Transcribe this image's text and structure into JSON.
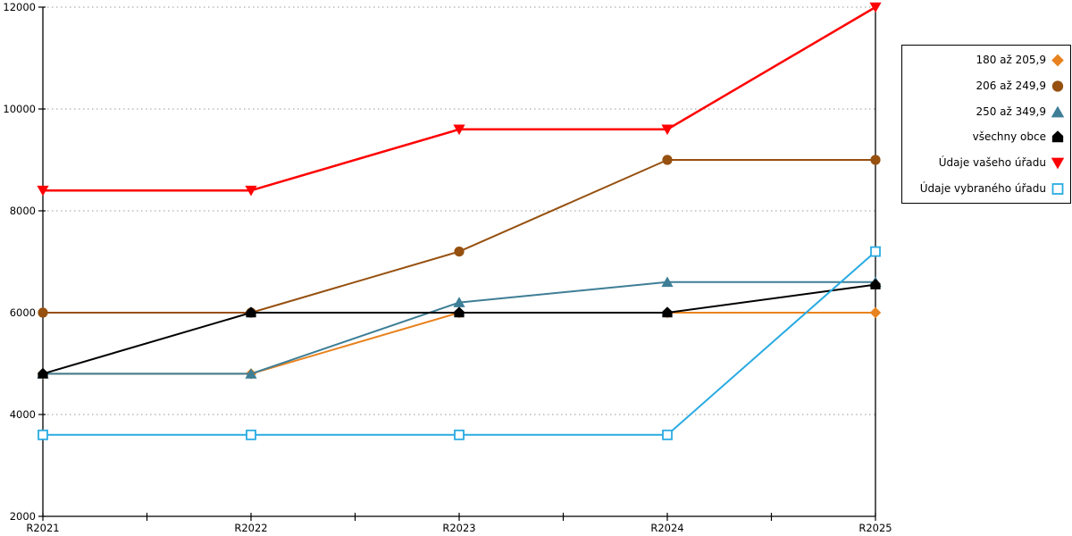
{
  "chart_data": {
    "type": "line",
    "title": "",
    "xlabel": "",
    "ylabel": "",
    "categories": [
      "R2021",
      "R2022",
      "R2023",
      "R2024",
      "R2025"
    ],
    "series": [
      {
        "name": "180 až 205,9",
        "marker": "diamond",
        "color": "#E8821E",
        "line_width": 2,
        "values": [
          4800,
          4800,
          6000,
          6000,
          6000
        ]
      },
      {
        "name": "206 až 249,9",
        "marker": "circle",
        "color": "#96500F",
        "line_width": 2,
        "values": [
          6000,
          6000,
          7200,
          9000,
          9000
        ]
      },
      {
        "name": "250 až 349,9",
        "marker": "triangle-up",
        "color": "#3E7E96",
        "line_width": 2,
        "values": [
          4800,
          4800,
          6200,
          6600,
          6600
        ]
      },
      {
        "name": "všechny obce",
        "marker": "house",
        "color": "#000000",
        "line_width": 2,
        "values": [
          4800,
          6000,
          6000,
          6000,
          6550
        ]
      },
      {
        "name": "Údaje vašeho úřadu",
        "marker": "triangle-down",
        "color": "#FF0000",
        "line_width": 2.5,
        "values": [
          8400,
          8400,
          9600,
          9600,
          12000
        ]
      },
      {
        "name": "Údaje vybraného úřadu",
        "marker": "square-open",
        "color": "#29ABE2",
        "line_width": 2,
        "values": [
          3600,
          3600,
          3600,
          3600,
          7200
        ]
      }
    ],
    "ylim": [
      2000,
      12000
    ],
    "yticks": [
      2000,
      4000,
      6000,
      8000,
      10000,
      12000
    ],
    "grid": "horizontal-dotted",
    "gridline_color": "#ADADAD",
    "axis_color": "#000000",
    "legend_position": "outside-top-right"
  }
}
